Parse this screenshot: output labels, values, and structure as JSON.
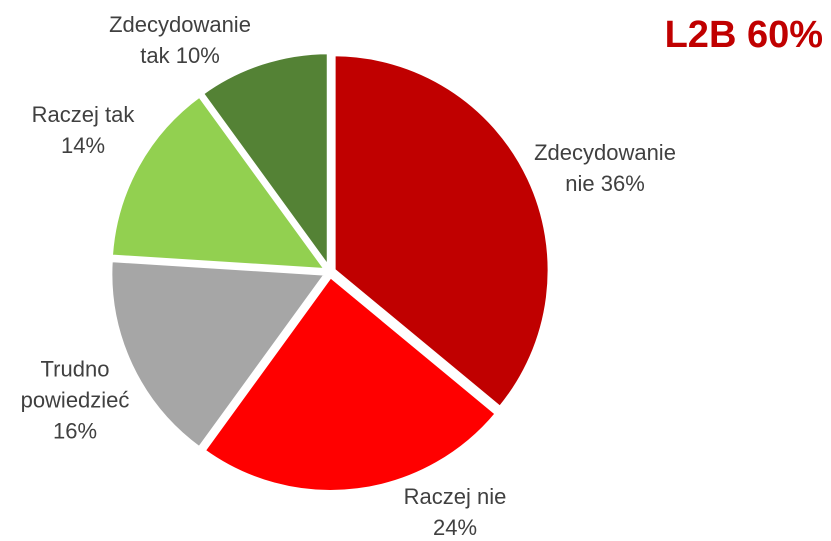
{
  "chart_data": {
    "type": "pie",
    "annotation": "L2B 60%",
    "categories": [
      "Zdecydowanie nie",
      "Raczej nie",
      "Trudno powiedzieć",
      "Raczej tak",
      "Zdecydowanie tak"
    ],
    "values": [
      36,
      24,
      16,
      14,
      10
    ],
    "value_labels": [
      "36%",
      "24%",
      "16%",
      "14%",
      "10%"
    ],
    "colors": [
      "#c00000",
      "#ff0000",
      "#a6a6a6",
      "#92d050",
      "#548235"
    ]
  }
}
